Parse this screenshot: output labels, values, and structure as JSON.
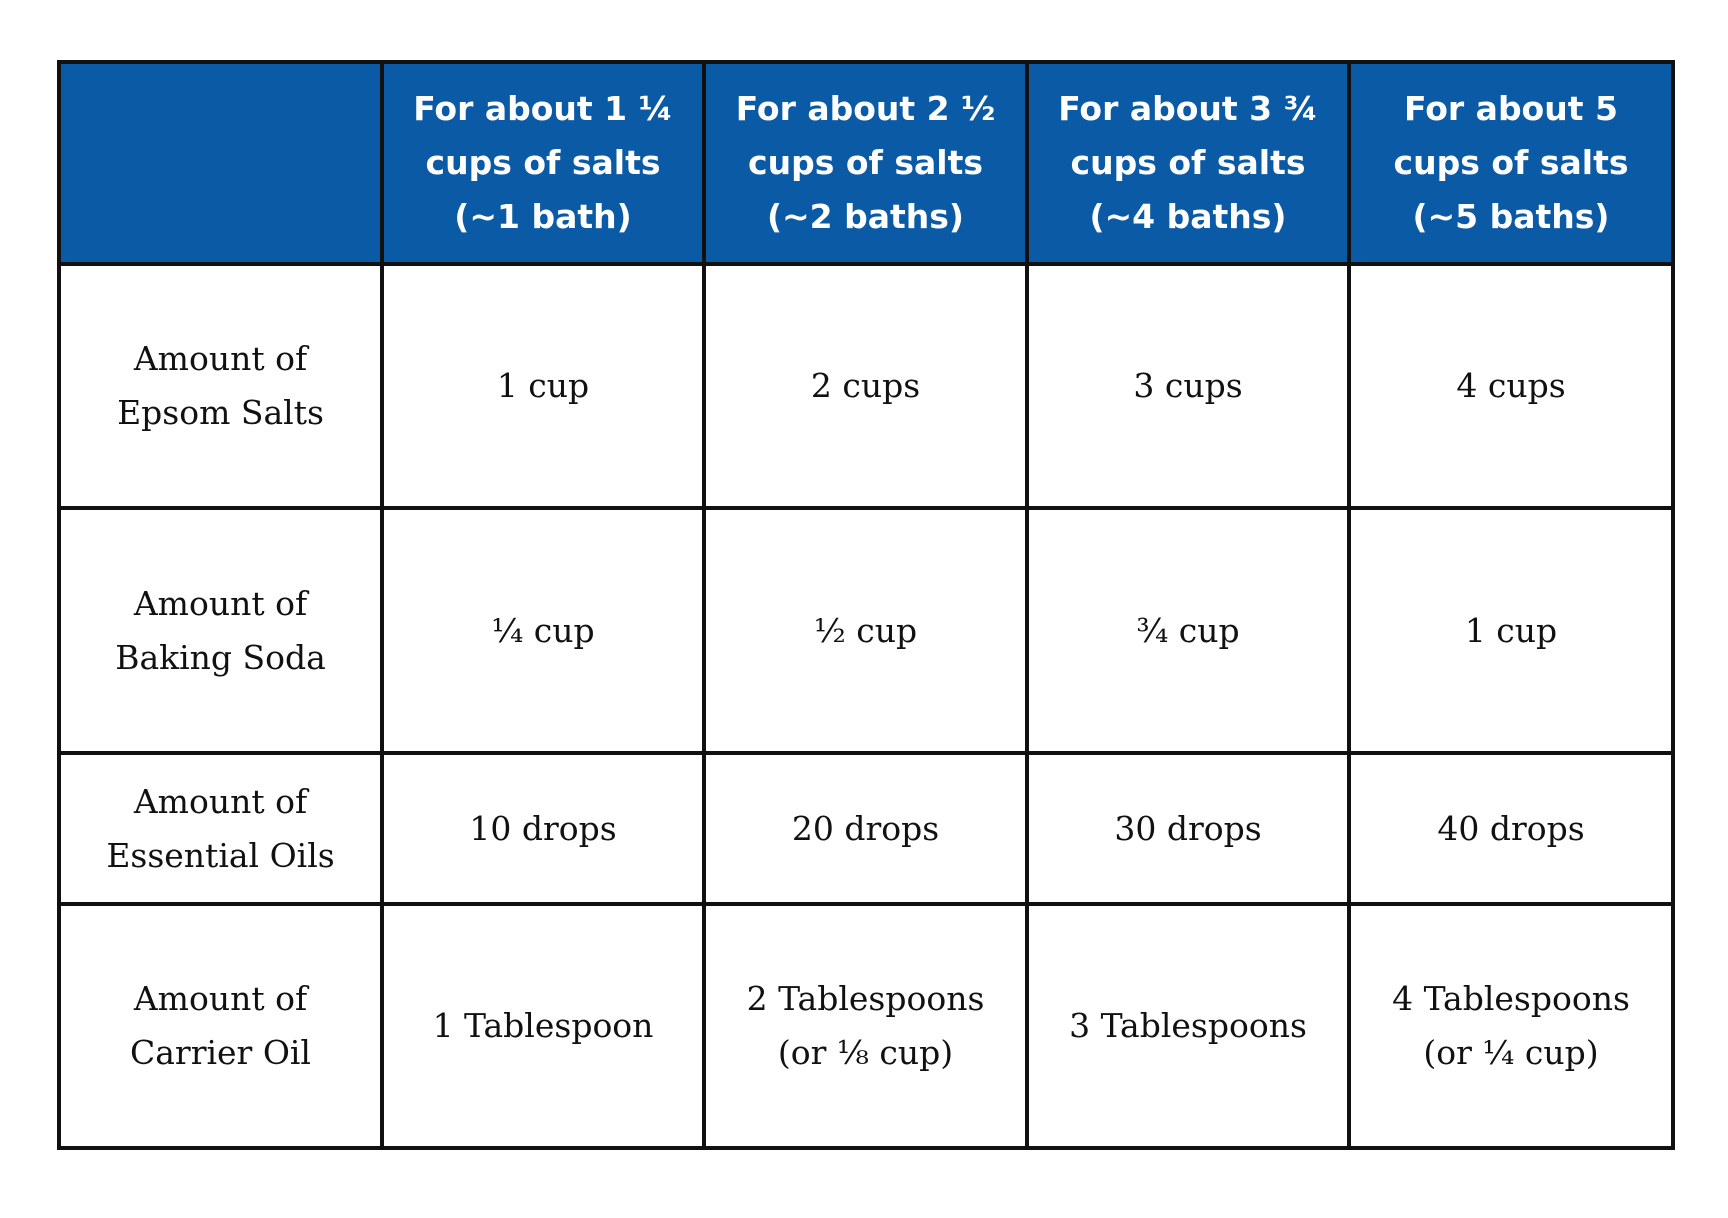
{
  "table": {
    "columns": [
      [
        "For about 1 ¼",
        "cups of salts",
        "(~1 bath)"
      ],
      [
        "For about 2 ½",
        "cups of  salts",
        "(~2 baths)"
      ],
      [
        "For about 3 ¾",
        "cups of salts",
        "(~4 baths)"
      ],
      [
        "For about 5",
        "cups of salts",
        "(~5 baths)"
      ]
    ],
    "rows": [
      {
        "label": [
          "Amount of",
          "Epsom Salts"
        ],
        "cells": [
          [
            "1 cup"
          ],
          [
            "2 cups"
          ],
          [
            "3 cups"
          ],
          [
            "4 cups"
          ]
        ]
      },
      {
        "label": [
          "Amount of",
          "Baking Soda"
        ],
        "cells": [
          [
            "¼ cup"
          ],
          [
            "½ cup"
          ],
          [
            "¾ cup"
          ],
          [
            "1 cup"
          ]
        ]
      },
      {
        "label": [
          "Amount of",
          "Essential Oils"
        ],
        "cells": [
          [
            "10 drops"
          ],
          [
            "20 drops"
          ],
          [
            "30 drops"
          ],
          [
            "40 drops"
          ]
        ]
      },
      {
        "label": [
          "Amount of",
          "Carrier Oil"
        ],
        "cells": [
          [
            "1 Tablespoon"
          ],
          [
            "2 Tablespoons",
            "(or ⅛ cup)"
          ],
          [
            "3 Tablespoons"
          ],
          [
            "4 Tablespoons",
            "(or ¼ cup)"
          ]
        ]
      }
    ]
  }
}
